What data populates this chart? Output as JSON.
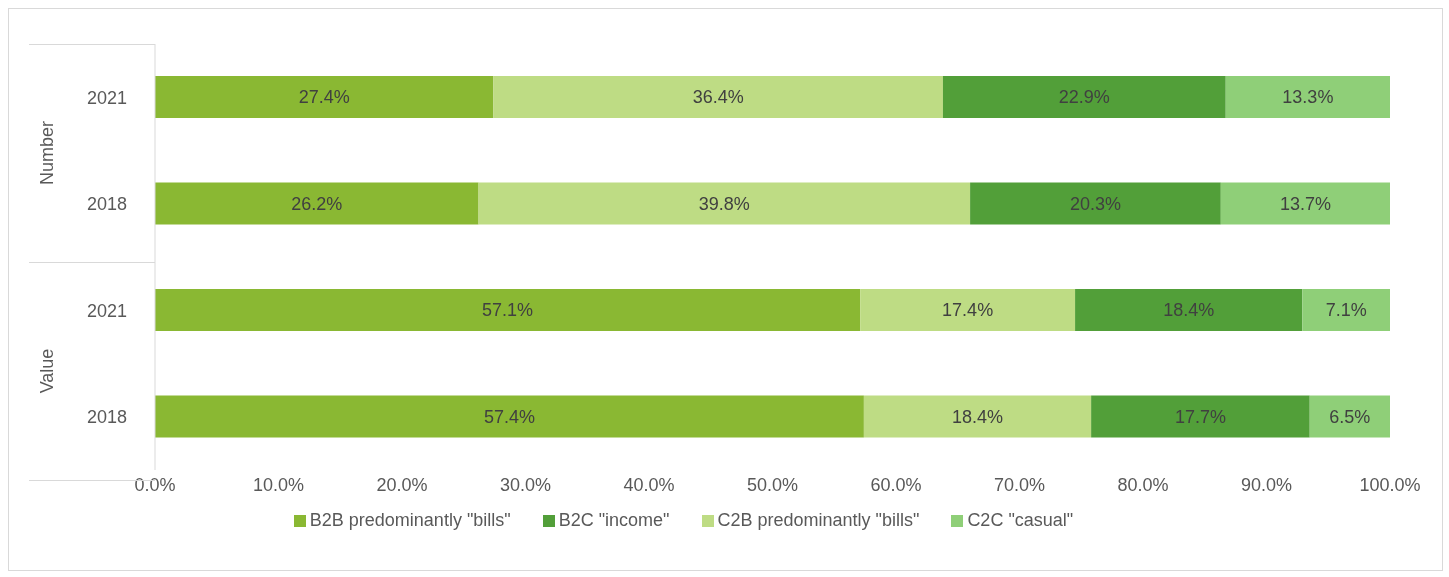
{
  "chart_data": {
    "type": "bar",
    "orientation": "horizontal",
    "stacked": true,
    "categories": [
      "2021",
      "2018",
      "2021",
      "2018"
    ],
    "annotations": [
      "Number",
      "Value"
    ],
    "series": [
      {
        "name": "B2B predominantly \"bills\"",
        "color": "#8ab833",
        "values": [
          27.4,
          26.2,
          57.1,
          57.4
        ],
        "value_labels": [
          "27.4%",
          "26.2%",
          "57.1%",
          "57.4%"
        ]
      },
      {
        "name": "C2B predominantly \"bills\"",
        "color": "#bedc84",
        "values": [
          36.4,
          39.8,
          17.4,
          18.4
        ],
        "value_labels": [
          "36.4%",
          "39.8%",
          "17.4%",
          "18.4%"
        ]
      },
      {
        "name": "B2C \"income\"",
        "color": "#529f39",
        "values": [
          22.9,
          20.3,
          18.4,
          17.7
        ],
        "value_labels": [
          "22.9%",
          "20.3%",
          "18.4%",
          "17.7%"
        ]
      },
      {
        "name": "C2C \"casual\"",
        "color": "#8fcf78",
        "values": [
          13.3,
          13.7,
          7.1,
          6.5
        ],
        "value_labels": [
          "13.3%",
          "13.7%",
          "7.1%",
          "6.5%"
        ]
      }
    ],
    "xlim": [
      0,
      100
    ],
    "xticks": [
      {
        "value": 0,
        "label": "0.0%"
      },
      {
        "value": 10,
        "label": "10.0%"
      },
      {
        "value": 20,
        "label": "20.0%"
      },
      {
        "value": 30,
        "label": "30.0%"
      },
      {
        "value": 40,
        "label": "40.0%"
      },
      {
        "value": 50,
        "label": "50.0%"
      },
      {
        "value": 60,
        "label": "60.0%"
      },
      {
        "value": 70,
        "label": "70.0%"
      },
      {
        "value": 80,
        "label": "80.0%"
      },
      {
        "value": 90,
        "label": "90.0%"
      },
      {
        "value": 100,
        "label": "100.0%"
      }
    ],
    "grid": false,
    "legend": "bottom"
  }
}
